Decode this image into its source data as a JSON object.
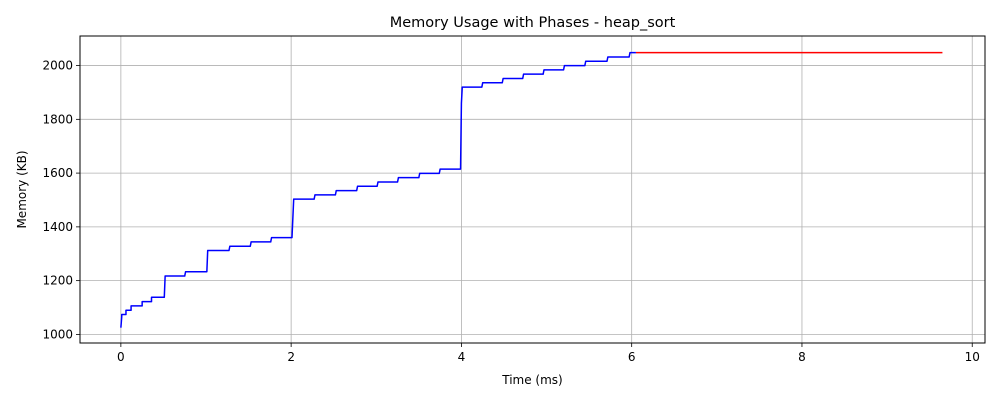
{
  "chart_data": {
    "type": "line",
    "title": "Memory Usage with Phases - heap_sort",
    "xlabel": "Time (ms)",
    "ylabel": "Memory (KB)",
    "xlim": [
      -0.48,
      10.15
    ],
    "ylim": [
      968,
      2110
    ],
    "xticks": [
      0,
      2,
      4,
      6,
      8,
      10
    ],
    "yticks": [
      1000,
      1200,
      1400,
      1600,
      1800,
      2000
    ],
    "grid": true,
    "legend": "none",
    "colors": {
      "phase_1": "#0000ff",
      "phase_2": "#ff0000",
      "grid": "#b0b0b0",
      "axes": "#000000"
    },
    "series": [
      {
        "color": "#0000ff",
        "x": [
          0,
          0.01,
          0.01,
          0.06,
          0.06,
          0.12,
          0.12,
          0.25,
          0.25,
          0.36,
          0.36,
          0.51,
          0.52,
          0.75,
          0.76,
          1.01,
          1.02,
          1.27,
          1.28,
          1.52,
          1.53,
          1.76,
          1.77,
          2.01,
          2.03,
          2.27,
          2.28,
          2.52,
          2.53,
          2.77,
          2.78,
          3.01,
          3.02,
          3.25,
          3.26,
          3.5,
          3.51,
          3.74,
          3.75,
          3.99,
          4.0,
          4.01,
          4.24,
          4.25,
          4.48,
          4.49,
          4.72,
          4.73,
          4.96,
          4.97,
          5.2,
          5.21,
          5.45,
          5.46,
          5.71,
          5.72,
          5.97,
          5.98,
          6.05
        ],
        "y": [
          1025,
          1065,
          1074,
          1074,
          1090,
          1090,
          1106,
          1106,
          1122,
          1122,
          1138,
          1138,
          1217,
          1217,
          1233,
          1233,
          1312,
          1312,
          1328,
          1328,
          1344,
          1344,
          1360,
          1360,
          1503,
          1503,
          1519,
          1519,
          1535,
          1535,
          1551,
          1551,
          1567,
          1567,
          1583,
          1583,
          1599,
          1599,
          1615,
          1615,
          1860,
          1920,
          1920,
          1936,
          1936,
          1952,
          1952,
          1968,
          1968,
          1984,
          1984,
          2000,
          2000,
          2016,
          2016,
          2032,
          2032,
          2048,
          2048
        ]
      },
      {
        "color": "#ff0000",
        "x": [
          6.05,
          9.65
        ],
        "y": [
          2048,
          2048
        ]
      }
    ]
  }
}
